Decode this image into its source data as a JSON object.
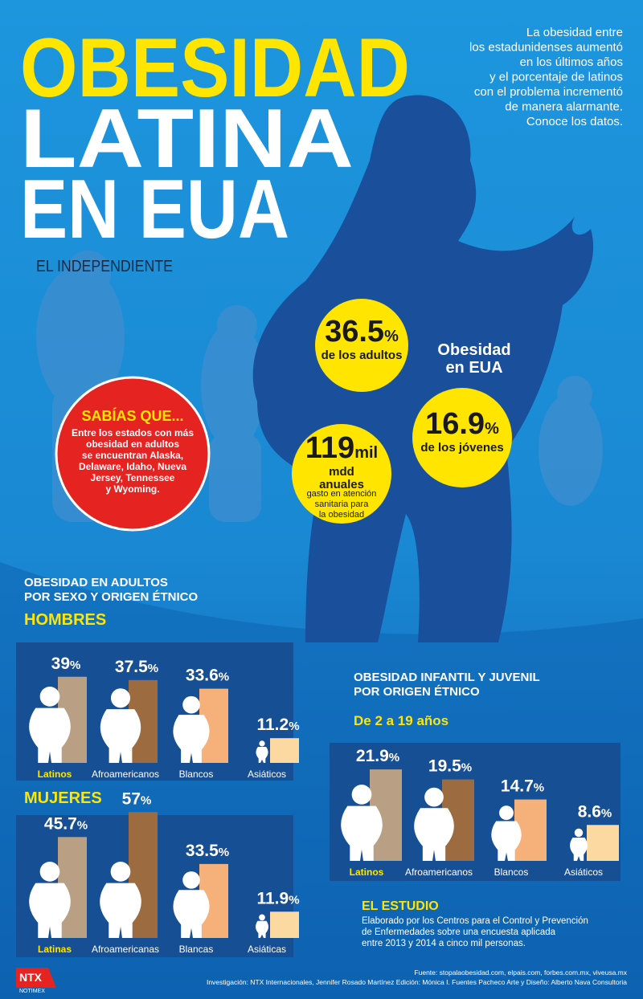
{
  "title": [
    "OBESIDAD",
    "LATINA",
    "EN EUA"
  ],
  "intro": [
    "La obesidad entre",
    "los estadunidenses aumentó",
    "en los últimos años",
    "y el porcentaje de latinos",
    "con el problema incrementó",
    "de manera alarmante.",
    "Conoce los datos."
  ],
  "logo": {
    "name": "EL INDEPENDIENTE"
  },
  "did_you_know": {
    "title": "SABÍAS QUE...",
    "text": [
      "Entre los estados con más",
      "obesidad  en adultos",
      "se encuentran Alaska,",
      "Delaware, Idaho, Nueva",
      "Jersey, Tennessee",
      "y Wyoming."
    ]
  },
  "usa_label": [
    "Obesidad",
    "en EUA"
  ],
  "stats": [
    {
      "value": 36.5,
      "unit": "%",
      "text": [
        "de los adultos"
      ]
    },
    {
      "value": 16.9,
      "unit": "%",
      "text": [
        "de los jóvenes"
      ]
    },
    {
      "value": 119,
      "unit": "mil",
      "text": [
        "mdd",
        "anuales",
        "gasto en atención",
        "sanitaria para",
        "la obesidad"
      ]
    }
  ],
  "adults": {
    "title": [
      "OBESIDAD EN ADULTOS",
      "POR SEXO Y ORIGEN ÉTNICO"
    ],
    "unit": "%",
    "colors": [
      "#b9a084",
      "#9c6b40",
      "#f6b07a",
      "#fcd9a0"
    ],
    "groups": [
      {
        "name": "HOMBRES",
        "categories": [
          "Latinos",
          "Afroamericanos",
          "Blancos",
          "Asiáticos"
        ],
        "values": [
          39,
          37.5,
          33.6,
          11.2
        ]
      },
      {
        "name": "MUJERES",
        "categories": [
          "Latinas",
          "Afroamericanas",
          "Blancas",
          "Asiáticas"
        ],
        "values": [
          45.7,
          57,
          33.5,
          11.9
        ]
      }
    ]
  },
  "youth": {
    "title": [
      "OBESIDAD INFANTIL Y JUVENIL",
      "POR ORIGEN ÉTNICO"
    ],
    "subtitle": "De 2 a 19 años",
    "unit": "%",
    "categories": [
      "Latinos",
      "Afroamericanos",
      "Blancos",
      "Asiáticos"
    ],
    "values": [
      21.9,
      19.5,
      14.7,
      8.6
    ]
  },
  "study": {
    "title": "EL ESTUDIO",
    "text": [
      "Elaborado por los Centros para el Control y Prevención",
      "de Enfermedades sobre una encuesta aplicada",
      "entre 2013 y 2014 a cinco mil personas."
    ]
  },
  "footer": {
    "source": "Fuente: stopalaobesidad.com, elpais.com, forbes.com.mx, viveusa.mx",
    "credits": "Investigación: NTX Internacionales, Jennifer Rosado Martínez  Edición: Mónica I. Fuentes Pacheco  Arte y Diseño: Alberto Nava Consultoria",
    "agency": "NTX",
    "agency_sub": "NOTIMEX"
  }
}
